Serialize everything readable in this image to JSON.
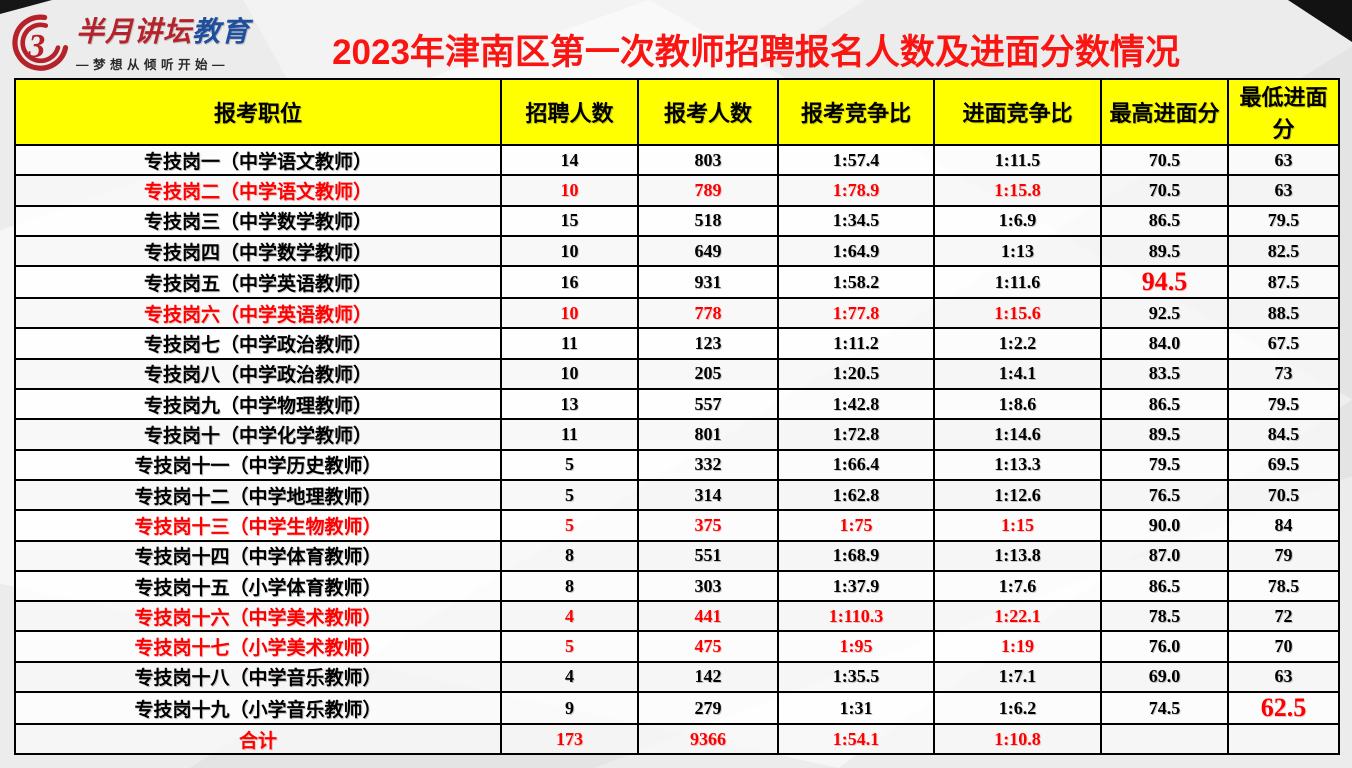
{
  "logo": {
    "brand_red": "半月讲坛",
    "brand_blue": "教育",
    "tagline": "—梦想从倾听开始—",
    "icon_glyph": "3"
  },
  "title": "2023年津南区第一次教师招聘报名人数及进面分数情况",
  "colors": {
    "accent_red": "#fe0000",
    "title_red": "#fb1512",
    "header_yellow": "#ffff00",
    "logo_red": "#b5222a",
    "logo_blue": "#1f4e9c"
  },
  "chart_data": {
    "type": "table",
    "title": "2023年津南区第一次教师招聘报名人数及进面分数情况",
    "columns": [
      "报考职位",
      "招聘人数",
      "报考人数",
      "报考竞争比",
      "进面竞争比",
      "最高进面分",
      "最低进面分"
    ],
    "rows": [
      {
        "position": "专技岗一（中学语文教师）",
        "hire": "14",
        "apply": "803",
        "apply_ratio": "1:57.4",
        "interview_ratio": "1:11.5",
        "max": "70.5",
        "min": "63",
        "red": false,
        "max_red": false,
        "min_red": false,
        "total": false
      },
      {
        "position": "专技岗二（中学语文教师）",
        "hire": "10",
        "apply": "789",
        "apply_ratio": "1:78.9",
        "interview_ratio": "1:15.8",
        "max": "70.5",
        "min": "63",
        "red": true,
        "max_red": false,
        "min_red": false,
        "total": false
      },
      {
        "position": "专技岗三（中学数学教师）",
        "hire": "15",
        "apply": "518",
        "apply_ratio": "1:34.5",
        "interview_ratio": "1:6.9",
        "max": "86.5",
        "min": "79.5",
        "red": false,
        "max_red": false,
        "min_red": false,
        "total": false
      },
      {
        "position": "专技岗四（中学数学教师）",
        "hire": "10",
        "apply": "649",
        "apply_ratio": "1:64.9",
        "interview_ratio": "1:13",
        "max": "89.5",
        "min": "82.5",
        "red": false,
        "max_red": false,
        "min_red": false,
        "total": false
      },
      {
        "position": "专技岗五（中学英语教师）",
        "hire": "16",
        "apply": "931",
        "apply_ratio": "1:58.2",
        "interview_ratio": "1:11.6",
        "max": "94.5",
        "min": "87.5",
        "red": false,
        "max_red": true,
        "min_red": false,
        "total": false
      },
      {
        "position": "专技岗六（中学英语教师）",
        "hire": "10",
        "apply": "778",
        "apply_ratio": "1:77.8",
        "interview_ratio": "1:15.6",
        "max": "92.5",
        "min": "88.5",
        "red": true,
        "max_red": false,
        "min_red": false,
        "total": false
      },
      {
        "position": "专技岗七（中学政治教师）",
        "hire": "11",
        "apply": "123",
        "apply_ratio": "1:11.2",
        "interview_ratio": "1:2.2",
        "max": "84.0",
        "min": "67.5",
        "red": false,
        "max_red": false,
        "min_red": false,
        "total": false
      },
      {
        "position": "专技岗八（中学政治教师）",
        "hire": "10",
        "apply": "205",
        "apply_ratio": "1:20.5",
        "interview_ratio": "1:4.1",
        "max": "83.5",
        "min": "73",
        "red": false,
        "max_red": false,
        "min_red": false,
        "total": false
      },
      {
        "position": "专技岗九（中学物理教师）",
        "hire": "13",
        "apply": "557",
        "apply_ratio": "1:42.8",
        "interview_ratio": "1:8.6",
        "max": "86.5",
        "min": "79.5",
        "red": false,
        "max_red": false,
        "min_red": false,
        "total": false
      },
      {
        "position": "专技岗十（中学化学教师）",
        "hire": "11",
        "apply": "801",
        "apply_ratio": "1:72.8",
        "interview_ratio": "1:14.6",
        "max": "89.5",
        "min": "84.5",
        "red": false,
        "max_red": false,
        "min_red": false,
        "total": false
      },
      {
        "position": "专技岗十一（中学历史教师）",
        "hire": "5",
        "apply": "332",
        "apply_ratio": "1:66.4",
        "interview_ratio": "1:13.3",
        "max": "79.5",
        "min": "69.5",
        "red": false,
        "max_red": false,
        "min_red": false,
        "total": false
      },
      {
        "position": "专技岗十二（中学地理教师）",
        "hire": "5",
        "apply": "314",
        "apply_ratio": "1:62.8",
        "interview_ratio": "1:12.6",
        "max": "76.5",
        "min": "70.5",
        "red": false,
        "max_red": false,
        "min_red": false,
        "total": false
      },
      {
        "position": "专技岗十三（中学生物教师）",
        "hire": "5",
        "apply": "375",
        "apply_ratio": "1:75",
        "interview_ratio": "1:15",
        "max": "90.0",
        "min": "84",
        "red": true,
        "max_red": false,
        "min_red": false,
        "total": false
      },
      {
        "position": "专技岗十四（中学体育教师）",
        "hire": "8",
        "apply": "551",
        "apply_ratio": "1:68.9",
        "interview_ratio": "1:13.8",
        "max": "87.0",
        "min": "79",
        "red": false,
        "max_red": false,
        "min_red": false,
        "total": false
      },
      {
        "position": "专技岗十五（小学体育教师）",
        "hire": "8",
        "apply": "303",
        "apply_ratio": "1:37.9",
        "interview_ratio": "1:7.6",
        "max": "86.5",
        "min": "78.5",
        "red": false,
        "max_red": false,
        "min_red": false,
        "total": false
      },
      {
        "position": "专技岗十六（中学美术教师）",
        "hire": "4",
        "apply": "441",
        "apply_ratio": "1:110.3",
        "interview_ratio": "1:22.1",
        "max": "78.5",
        "min": "72",
        "red": true,
        "max_red": false,
        "min_red": false,
        "total": false
      },
      {
        "position": "专技岗十七（小学美术教师）",
        "hire": "5",
        "apply": "475",
        "apply_ratio": "1:95",
        "interview_ratio": "1:19",
        "max": "76.0",
        "min": "70",
        "red": true,
        "max_red": false,
        "min_red": false,
        "total": false
      },
      {
        "position": "专技岗十八（中学音乐教师）",
        "hire": "4",
        "apply": "142",
        "apply_ratio": "1:35.5",
        "interview_ratio": "1:7.1",
        "max": "69.0",
        "min": "63",
        "red": false,
        "max_red": false,
        "min_red": false,
        "total": false
      },
      {
        "position": "专技岗十九（小学音乐教师）",
        "hire": "9",
        "apply": "279",
        "apply_ratio": "1:31",
        "interview_ratio": "1:6.2",
        "max": "74.5",
        "min": "62.5",
        "red": false,
        "max_red": false,
        "min_red": true,
        "total": false
      },
      {
        "position": "合计",
        "hire": "173",
        "apply": "9366",
        "apply_ratio": "1:54.1",
        "interview_ratio": "1:10.8",
        "max": "",
        "min": "",
        "red": true,
        "max_red": false,
        "min_red": false,
        "total": true
      }
    ]
  }
}
